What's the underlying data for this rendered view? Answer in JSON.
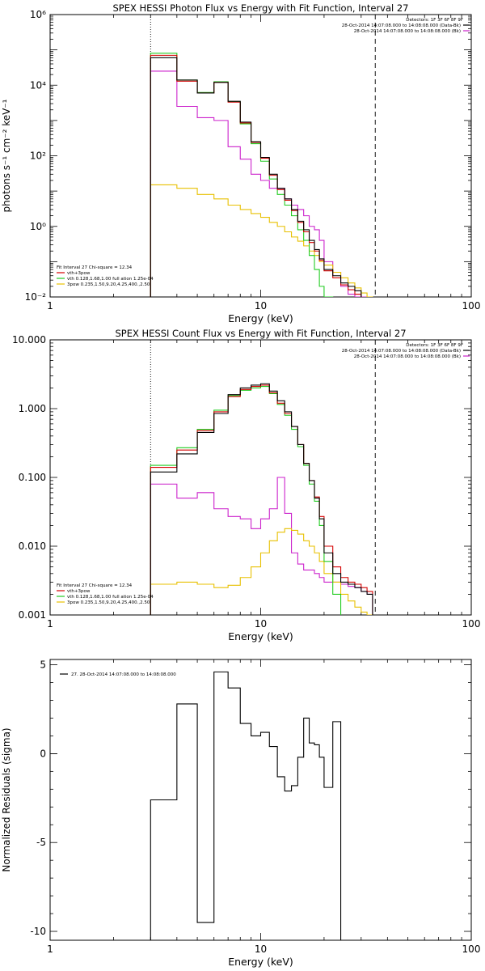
{
  "chart_data": [
    {
      "type": "line",
      "title": "SPEX HESSI Photon Flux vs Energy with Fit Function, Interval 27",
      "xlabel": "Energy (keV)",
      "ylabel": "photons s⁻¹ cm⁻² keV⁻¹",
      "xscale": "log",
      "yscale": "log",
      "xlim": [
        1,
        100
      ],
      "ylim": [
        0.01,
        1000000
      ],
      "x_ticks": [
        "1",
        "10",
        "100"
      ],
      "y_ticks": [
        "10⁻²",
        "10⁰",
        "10²",
        "10⁴",
        "10⁶"
      ],
      "y_tick_values": [
        0.01,
        1,
        100,
        10000,
        1000000
      ],
      "fit_range": [
        3,
        35
      ],
      "legend_right": {
        "header": "Detectors: 1F 3F 6F 8F 9F",
        "entries": [
          {
            "text": "28-Oct-2014 14:07:08.000 to 14:08:08.000 (Data-Bk)",
            "color": "#000000"
          },
          {
            "text": "28-Oct-2014 14:07:08.000 to 14:08:08.000 (Bk)",
            "color": "#cc22cc"
          }
        ]
      },
      "legend_left": {
        "header": "Fit Interval 27   Chi-square = 12.34",
        "entries": [
          {
            "text": "vth+3pow",
            "color": "#d40000"
          },
          {
            "text": "vth 0.128,1.68,1.00  full ation 1.25e-04",
            "color": "#22cc22"
          },
          {
            "text": "3pow 0.235,1.50,9.20,4.25,400.,2.50",
            "color": "#e8c000"
          }
        ]
      },
      "edges": [
        3,
        3.5,
        4,
        4.5,
        5,
        5.5,
        6,
        6.5,
        7,
        7.5,
        8,
        9,
        10,
        11,
        12,
        13,
        14,
        15,
        16,
        17,
        18,
        19,
        20,
        22,
        24,
        26,
        28,
        30,
        32,
        34,
        36
      ],
      "series": [
        {
          "name": "Data-Bk",
          "color": "#000000",
          "values": [
            60000,
            60000,
            14000,
            14000,
            6000,
            6000,
            12000,
            12000,
            3500,
            3500,
            900,
            250,
            90,
            30,
            12,
            6,
            3,
            1.4,
            0.8,
            0.4,
            0.22,
            0.12,
            0.06,
            0.04,
            0.025,
            0.02,
            0.015,
            null,
            null,
            null
          ]
        },
        {
          "name": "vth+3pow",
          "color": "#d40000",
          "values": [
            70000,
            70000,
            13000,
            13000,
            6000,
            6000,
            12000,
            12000,
            3300,
            3300,
            850,
            240,
            85,
            28,
            11,
            5.5,
            2.8,
            1.3,
            0.7,
            0.35,
            0.2,
            0.11,
            0.055,
            0.035,
            0.022,
            0.016,
            0.012,
            null,
            null,
            null
          ]
        },
        {
          "name": "vth",
          "color": "#22cc22",
          "values": [
            80000,
            80000,
            14000,
            14000,
            6200,
            6200,
            12500,
            12500,
            3400,
            3400,
            800,
            220,
            70,
            22,
            8,
            4,
            2,
            0.8,
            0.4,
            0.15,
            0.06,
            0.02,
            0.01,
            0.004,
            null,
            null,
            null,
            null,
            null,
            null
          ]
        },
        {
          "name": "3pow",
          "color": "#e8c000",
          "values": [
            15,
            15,
            12,
            12,
            8,
            8,
            6,
            6,
            4,
            4,
            3,
            2.3,
            1.8,
            1.3,
            1,
            0.7,
            0.5,
            0.38,
            0.28,
            0.2,
            0.15,
            0.1,
            0.08,
            0.05,
            0.035,
            0.025,
            0.018,
            0.013,
            0.01,
            0.006
          ]
        },
        {
          "name": "Bk",
          "color": "#cc22cc",
          "values": [
            25000,
            25000,
            2500,
            2500,
            1200,
            1200,
            1000,
            1000,
            180,
            180,
            80,
            30,
            20,
            12,
            12,
            6,
            4,
            3,
            2,
            1,
            0.8,
            0.4,
            0.1,
            0.05,
            0.02,
            0.012,
            0.01,
            0.01,
            null,
            null
          ]
        }
      ]
    },
    {
      "type": "line",
      "title": "SPEX HESSI Count Flux vs Energy with Fit Function, Interval 27",
      "xlabel": "Energy (keV)",
      "ylabel": "",
      "xscale": "log",
      "yscale": "log",
      "xlim": [
        1,
        100
      ],
      "ylim": [
        0.001,
        10
      ],
      "x_ticks": [
        "1",
        "10",
        "100"
      ],
      "y_ticks": [
        "0.001",
        "0.010",
        "0.100",
        "1.000",
        "10.000"
      ],
      "y_tick_values": [
        0.001,
        0.01,
        0.1,
        1,
        10
      ],
      "fit_range": [
        3,
        35
      ],
      "legend_right": {
        "header": "Detectors: 1F 3F 6F 8F 9F",
        "entries": [
          {
            "text": "28-Oct-2014 14:07:08.000 to 14:08:08.000 (Data-Bk)",
            "color": "#000000"
          },
          {
            "text": "28-Oct-2014 14:07:08.000 to 14:08:08.000 (Bk)",
            "color": "#cc22cc"
          }
        ]
      },
      "legend_left": {
        "header": "Fit Interval 27   Chi-square = 12.34",
        "entries": [
          {
            "text": "vth+3pow",
            "color": "#d40000"
          },
          {
            "text": "vth 0.128,1.68,1.00  full ation 1.25e-04",
            "color": "#22cc22"
          },
          {
            "text": "3pow 0.235,1.50,9.20,4.25,400.,2.50",
            "color": "#e8c000"
          }
        ]
      },
      "edges": [
        3,
        3.5,
        4,
        4.5,
        5,
        5.5,
        6,
        6.5,
        7,
        7.5,
        8,
        9,
        10,
        11,
        12,
        13,
        14,
        15,
        16,
        17,
        18,
        19,
        20,
        22,
        24,
        26,
        28,
        30,
        32,
        34,
        36
      ],
      "series": [
        {
          "name": "Data-Bk",
          "color": "#000000",
          "values": [
            0.12,
            0.12,
            0.22,
            0.22,
            0.45,
            0.45,
            0.85,
            0.85,
            1.6,
            1.6,
            2.0,
            2.2,
            2.3,
            1.8,
            1.3,
            0.9,
            0.55,
            0.3,
            0.16,
            0.09,
            0.05,
            0.025,
            0.008,
            0.004,
            0.003,
            0.0028,
            0.0025,
            0.0022,
            0.002,
            null
          ]
        },
        {
          "name": "vth+3pow",
          "color": "#d40000",
          "values": [
            0.14,
            0.14,
            0.25,
            0.25,
            0.48,
            0.48,
            0.9,
            0.9,
            1.5,
            1.5,
            1.9,
            2.1,
            2.2,
            1.7,
            1.2,
            0.85,
            0.55,
            0.3,
            0.16,
            0.09,
            0.052,
            0.027,
            0.01,
            0.005,
            0.0035,
            0.003,
            0.0028,
            0.0025,
            0.0022,
            null
          ]
        },
        {
          "name": "vth",
          "color": "#22cc22",
          "values": [
            0.15,
            0.15,
            0.27,
            0.27,
            0.5,
            0.5,
            0.95,
            0.95,
            1.55,
            1.55,
            1.85,
            2.0,
            2.1,
            1.65,
            1.15,
            0.8,
            0.5,
            0.28,
            0.15,
            0.08,
            0.045,
            0.02,
            0.006,
            0.002,
            0.0008,
            null,
            null,
            null,
            null,
            null
          ]
        },
        {
          "name": "3pow",
          "color": "#e8c000",
          "values": [
            0.0028,
            0.0028,
            0.003,
            0.003,
            0.0028,
            0.0028,
            0.0025,
            0.0025,
            0.0027,
            0.0027,
            0.0035,
            0.005,
            0.008,
            0.012,
            0.016,
            0.018,
            0.017,
            0.015,
            0.012,
            0.01,
            0.008,
            0.006,
            0.004,
            0.003,
            0.002,
            0.0016,
            0.0013,
            0.0011,
            0.001,
            0.0008
          ]
        },
        {
          "name": "Bk",
          "color": "#cc22cc",
          "values": [
            0.08,
            0.08,
            0.05,
            0.05,
            0.06,
            0.06,
            0.035,
            0.035,
            0.027,
            0.027,
            0.025,
            0.018,
            0.025,
            0.035,
            0.1,
            0.03,
            0.008,
            0.0055,
            0.0045,
            0.0045,
            0.004,
            0.0035,
            0.003,
            0.003,
            0.0028,
            0.0026,
            0.0025,
            0.0022,
            0.002,
            null
          ]
        }
      ]
    },
    {
      "type": "line",
      "title": "",
      "xlabel": "Energy (keV)",
      "ylabel": "Normalized Residuals (sigma)",
      "xscale": "log",
      "yscale": "linear",
      "xlim": [
        1,
        100
      ],
      "ylim": [
        -10.5,
        5.3
      ],
      "x_ticks": [
        "1",
        "10",
        "100"
      ],
      "y_ticks": [
        "-10",
        "-5",
        "0",
        "5"
      ],
      "y_tick_values": [
        -10,
        -5,
        0,
        5
      ],
      "legend_left": {
        "header": "",
        "entries": [
          {
            "text": "27. 28-Oct-2014 14:07:08.000 to 14:08:08.000",
            "color": "#000000"
          }
        ]
      },
      "edges": [
        3,
        3.5,
        4,
        4.5,
        5,
        5.5,
        6,
        6.5,
        7,
        7.5,
        8,
        9,
        10,
        11,
        12,
        13,
        14,
        15,
        16,
        17,
        18,
        19,
        20,
        22,
        24,
        26,
        28,
        30,
        32,
        34,
        36
      ],
      "series": [
        {
          "name": "27",
          "color": "#000000",
          "values": [
            -2.6,
            -2.6,
            2.8,
            2.8,
            -9.5,
            -9.5,
            4.6,
            4.6,
            3.7,
            3.7,
            1.7,
            1.0,
            1.2,
            0.4,
            -1.3,
            -2.1,
            -1.8,
            -0.2,
            2.0,
            0.6,
            0.5,
            -0.2,
            -1.9,
            1.8,
            null,
            null,
            null,
            null,
            null,
            null
          ]
        }
      ]
    }
  ]
}
